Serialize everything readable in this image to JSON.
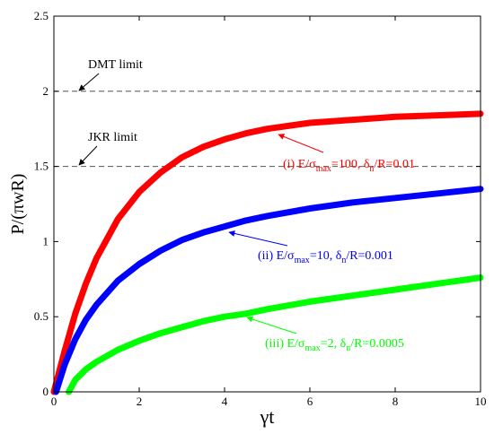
{
  "chart_data": {
    "type": "line",
    "xlabel": "γt",
    "ylabel": "P/(πwR)",
    "xlim": [
      0,
      10
    ],
    "ylim": [
      0,
      2.5
    ],
    "xticks": [
      0,
      2,
      4,
      6,
      8,
      10
    ],
    "yticks": [
      0,
      0.5,
      1,
      1.5,
      2,
      2.5
    ],
    "grid": false,
    "reference_lines": [
      {
        "name": "DMT limit",
        "y": 2.0,
        "style": "dashed"
      },
      {
        "name": "JKR limit",
        "y": 1.5,
        "style": "dashed"
      }
    ],
    "series": [
      {
        "color": "#ff0000",
        "label_parts": {
          "prefix": "(i) E/σ",
          "sub1": "max",
          "mid": "=100, δ",
          "sub2": "n",
          "suffix": "/R=0.01"
        },
        "x": [
          0,
          0.25,
          0.5,
          0.75,
          1,
          1.5,
          2,
          2.5,
          3,
          3.5,
          4,
          4.5,
          5,
          6,
          7,
          8,
          9,
          10
        ],
        "y": [
          0,
          0.27,
          0.52,
          0.72,
          0.89,
          1.15,
          1.33,
          1.46,
          1.56,
          1.63,
          1.68,
          1.72,
          1.75,
          1.79,
          1.81,
          1.83,
          1.84,
          1.85
        ]
      },
      {
        "color": "#0000ff",
        "label_parts": {
          "prefix": "(ii) E/σ",
          "sub1": "max",
          "mid": "=10, δ",
          "sub2": "n",
          "suffix": "/R=0.001"
        },
        "x": [
          0.05,
          0.25,
          0.5,
          0.75,
          1,
          1.5,
          2,
          2.5,
          3,
          3.5,
          4,
          4.5,
          5,
          6,
          7,
          8,
          9,
          10
        ],
        "y": [
          0,
          0.18,
          0.35,
          0.48,
          0.58,
          0.74,
          0.85,
          0.94,
          1.01,
          1.06,
          1.1,
          1.14,
          1.17,
          1.22,
          1.26,
          1.29,
          1.32,
          1.35
        ]
      },
      {
        "color": "#00ff00",
        "label_parts": {
          "prefix": "(iii) E/σ",
          "sub1": "max",
          "mid": "=2, δ",
          "sub2": "n",
          "suffix": "/R=0.0005"
        },
        "x": [
          0.35,
          0.5,
          0.75,
          1,
          1.5,
          2,
          2.5,
          3,
          3.5,
          4,
          4.5,
          5,
          6,
          7,
          8,
          9,
          10
        ],
        "y": [
          0,
          0.08,
          0.15,
          0.2,
          0.28,
          0.34,
          0.39,
          0.43,
          0.47,
          0.5,
          0.52,
          0.55,
          0.6,
          0.64,
          0.68,
          0.72,
          0.76
        ]
      }
    ]
  }
}
